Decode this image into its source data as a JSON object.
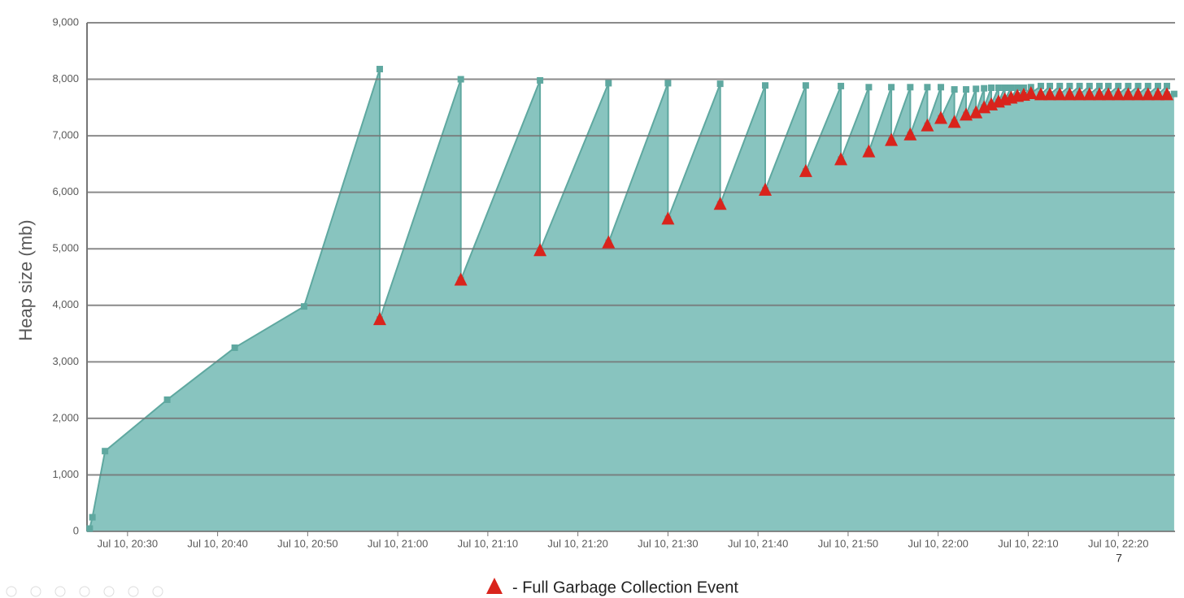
{
  "chart_data": {
    "type": "area",
    "y_label": "Heap size (mb)",
    "xlim": [
      1225.5,
      1346.3
    ],
    "ylim": [
      0,
      9000
    ],
    "xticks": [
      {
        "value": 1230,
        "label": "Jul 10, 20:30"
      },
      {
        "value": 1240,
        "label": "Jul 10, 20:40"
      },
      {
        "value": 1250,
        "label": "Jul 10, 20:50"
      },
      {
        "value": 1260,
        "label": "Jul 10, 21:00"
      },
      {
        "value": 1270,
        "label": "Jul 10, 21:10"
      },
      {
        "value": 1280,
        "label": "Jul 10, 21:20"
      },
      {
        "value": 1290,
        "label": "Jul 10, 21:30"
      },
      {
        "value": 1300,
        "label": "Jul 10, 21:40"
      },
      {
        "value": 1310,
        "label": "Jul 10, 21:50"
      },
      {
        "value": 1320,
        "label": "Jul 10, 22:00"
      },
      {
        "value": 1330,
        "label": "Jul 10, 22:10"
      },
      {
        "value": 1340,
        "label": "Jul 10, 22:20"
      }
    ],
    "yticks": [
      0,
      {
        "value": 1000,
        "label": "1,000"
      },
      {
        "value": 2000,
        "label": "2,000"
      },
      {
        "value": 3000,
        "label": "3,000"
      },
      {
        "value": 4000,
        "label": "4,000"
      },
      {
        "value": 5000,
        "label": "5,000"
      },
      {
        "value": 6000,
        "label": "6,000"
      },
      {
        "value": 7000,
        "label": "7,000"
      },
      {
        "value": 8000,
        "label": "8,000"
      },
      {
        "value": 9000,
        "label": "9,000"
      }
    ],
    "grid": true,
    "series": [
      {
        "color": "#5fa8a0",
        "fill": "#88c4bf",
        "marker": "square",
        "x": [
          1225.8,
          1226.1,
          1227.5,
          1234.4,
          1241.9,
          1249.6,
          1258.0,
          1258.0,
          1267.0,
          1267.0,
          1275.8,
          1275.8,
          1283.4,
          1283.4,
          1290.0,
          1290.0,
          1295.8,
          1295.8,
          1300.8,
          1300.8,
          1305.3,
          1305.3,
          1309.2,
          1309.2,
          1312.3,
          1312.3,
          1314.8,
          1314.8,
          1316.9,
          1316.9,
          1318.8,
          1318.8,
          1320.3,
          1320.3,
          1321.8,
          1321.8,
          1323.1,
          1323.1,
          1324.2,
          1324.2,
          1325.1,
          1325.1,
          1325.9,
          1325.9,
          1326.7,
          1326.7,
          1327.4,
          1327.4,
          1328.1,
          1328.1,
          1328.8,
          1328.8,
          1329.5,
          1329.5,
          1330.3,
          1330.3,
          1331.4,
          1331.4,
          1332.4,
          1332.4,
          1333.5,
          1333.5,
          1334.6,
          1334.6,
          1335.7,
          1335.7,
          1336.8,
          1336.8,
          1337.9,
          1337.9,
          1338.9,
          1338.9,
          1340.0,
          1340.0,
          1341.1,
          1341.1,
          1342.2,
          1342.2,
          1343.3,
          1343.3,
          1344.4,
          1344.4,
          1345.4,
          1345.4,
          1346.2
        ],
        "values": [
          50,
          250,
          1420,
          2330,
          3250,
          3980,
          8180,
          3750,
          8000,
          4450,
          7980,
          4970,
          7930,
          5110,
          7930,
          5530,
          7920,
          5790,
          7890,
          6040,
          7890,
          6370,
          7880,
          6580,
          7860,
          6720,
          7860,
          6920,
          7860,
          7020,
          7860,
          7180,
          7860,
          7310,
          7820,
          7240,
          7820,
          7370,
          7830,
          7410,
          7840,
          7500,
          7850,
          7550,
          7850,
          7600,
          7850,
          7640,
          7850,
          7670,
          7850,
          7700,
          7850,
          7720,
          7860,
          7750,
          7880,
          7730,
          7880,
          7730,
          7880,
          7730,
          7880,
          7730,
          7880,
          7730,
          7880,
          7730,
          7880,
          7730,
          7880,
          7730,
          7880,
          7730,
          7880,
          7730,
          7880,
          7730,
          7880,
          7730,
          7880,
          7730,
          7880,
          7730,
          7740
        ]
      },
      {
        "name": "- Full Garbage Collection Event",
        "color": "#d9241c",
        "marker": "triangle",
        "x": [
          1258.0,
          1267.0,
          1275.8,
          1283.4,
          1290.0,
          1295.8,
          1300.8,
          1305.3,
          1309.2,
          1312.3,
          1314.8,
          1316.9,
          1318.8,
          1320.3,
          1321.8,
          1323.1,
          1324.2,
          1325.1,
          1325.9,
          1326.7,
          1327.4,
          1328.1,
          1328.8,
          1329.5,
          1330.3,
          1331.4,
          1332.4,
          1333.5,
          1334.6,
          1335.7,
          1336.8,
          1337.9,
          1338.9,
          1340.0,
          1341.1,
          1342.2,
          1343.3,
          1344.4,
          1345.4
        ],
        "values": [
          3750,
          4450,
          4970,
          5110,
          5530,
          5790,
          6040,
          6370,
          6580,
          6720,
          6920,
          7020,
          7180,
          7310,
          7240,
          7370,
          7410,
          7500,
          7550,
          7600,
          7640,
          7670,
          7700,
          7720,
          7750,
          7730,
          7730,
          7730,
          7730,
          7730,
          7730,
          7730,
          7730,
          7730,
          7730,
          7730,
          7730,
          7730,
          7730
        ]
      }
    ]
  },
  "page_number": "7"
}
